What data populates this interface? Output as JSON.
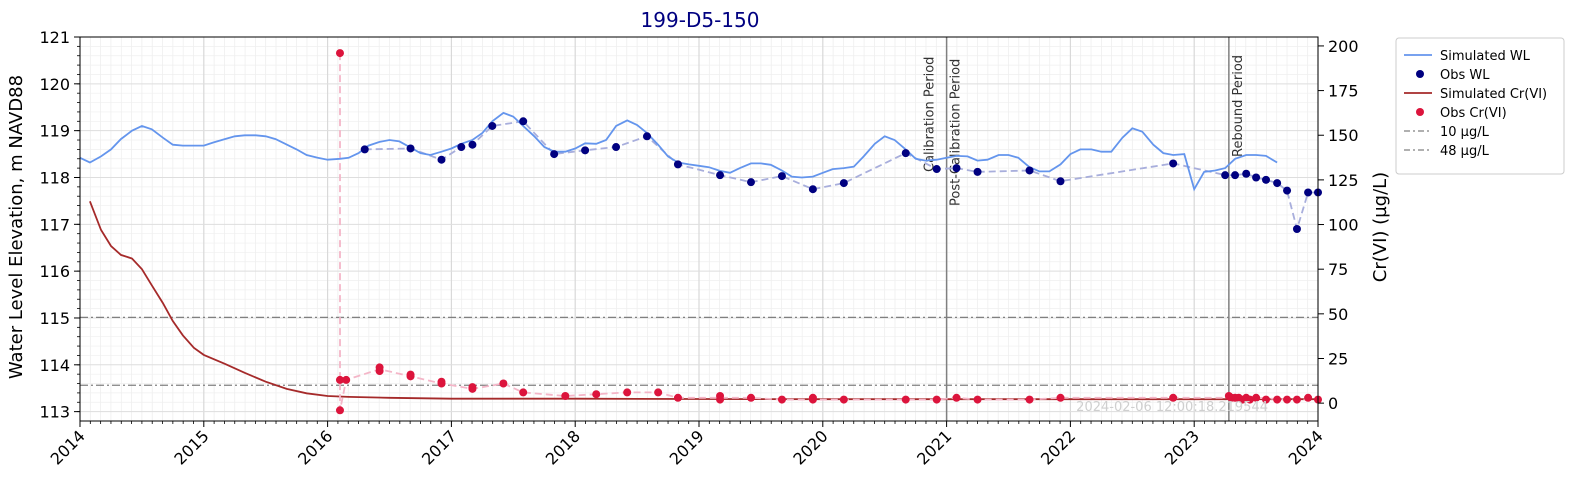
{
  "chart_data": {
    "type": "line",
    "title": "199-D5-150",
    "ylabel_left": "Water Level Elevation, m NAVD88",
    "ylabel_right": "Cr(VI) (µg/L)",
    "xlim": [
      2014.0,
      2024.0
    ],
    "ylim_left": [
      112.8,
      121.0
    ],
    "ylim_right": [
      -10,
      205
    ],
    "x_ticks": [
      "2014",
      "2015",
      "2016",
      "2017",
      "2018",
      "2019",
      "2020",
      "2021",
      "2022",
      "2023",
      "2024"
    ],
    "y_left_ticks": [
      "113",
      "114",
      "115",
      "116",
      "117",
      "118",
      "119",
      "120",
      "121"
    ],
    "y_right_ticks": [
      "0",
      "25",
      "50",
      "75",
      "100",
      "125",
      "150",
      "175",
      "200"
    ],
    "grid": true,
    "legend_position": "outside right",
    "vertical_markers": [
      {
        "x": 2021.0,
        "labels": [
          "Calibration Period",
          "Post-Calibration Period"
        ]
      },
      {
        "x": 2023.28,
        "labels": [
          "Rebound Period"
        ]
      }
    ],
    "horizontal_lines": [
      {
        "name": "10 µg/L",
        "axis": "right",
        "value": 10,
        "color": "#808080"
      },
      {
        "name": "48 µg/L",
        "axis": "right",
        "value": 48,
        "color": "#808080"
      }
    ],
    "timestamp": "2024-02-06 12:00:18.219544",
    "series": [
      {
        "name": "Simulated WL",
        "kind": "line",
        "axis": "left",
        "color": "#6495ED",
        "x": [
          2014.0,
          2014.08,
          2014.17,
          2014.25,
          2014.33,
          2014.42,
          2014.5,
          2014.58,
          2014.67,
          2014.75,
          2014.83,
          2015.0,
          2015.08,
          2015.17,
          2015.25,
          2015.33,
          2015.42,
          2015.5,
          2015.58,
          2015.75,
          2015.83,
          2015.92,
          2016.0,
          2016.1,
          2016.17,
          2016.25,
          2016.33,
          2016.42,
          2016.5,
          2016.58,
          2016.67,
          2016.75,
          2016.83,
          2016.92,
          2017.0,
          2017.08,
          2017.17,
          2017.25,
          2017.33,
          2017.42,
          2017.5,
          2017.58,
          2017.67,
          2017.75,
          2017.83,
          2017.92,
          2018.0,
          2018.08,
          2018.17,
          2018.25,
          2018.33,
          2018.42,
          2018.5,
          2018.58,
          2018.67,
          2018.75,
          2018.83,
          2018.92,
          2019.0,
          2019.08,
          2019.17,
          2019.25,
          2019.33,
          2019.42,
          2019.5,
          2019.58,
          2019.67,
          2019.75,
          2019.83,
          2019.92,
          2020.0,
          2020.08,
          2020.17,
          2020.25,
          2020.33,
          2020.42,
          2020.5,
          2020.58,
          2020.67,
          2020.75,
          2020.83,
          2020.92,
          2021.0,
          2021.08,
          2021.17,
          2021.25,
          2021.33,
          2021.42,
          2021.5,
          2021.58,
          2021.67,
          2021.75,
          2021.83,
          2021.92,
          2022.0,
          2022.08,
          2022.17,
          2022.25,
          2022.33,
          2022.42,
          2022.5,
          2022.58,
          2022.67,
          2022.75,
          2022.83,
          2022.92,
          2023.0,
          2023.08,
          2023.17,
          2023.25,
          2023.33,
          2023.42,
          2023.5,
          2023.58,
          2023.67
        ],
        "y": [
          118.42,
          118.32,
          118.45,
          118.6,
          118.82,
          119.0,
          119.1,
          119.03,
          118.85,
          118.7,
          118.68,
          118.68,
          118.75,
          118.82,
          118.88,
          118.9,
          118.9,
          118.88,
          118.82,
          118.6,
          118.48,
          118.42,
          118.38,
          118.4,
          118.42,
          118.52,
          118.68,
          118.76,
          118.8,
          118.77,
          118.64,
          118.52,
          118.48,
          118.55,
          118.62,
          118.72,
          118.8,
          118.95,
          119.2,
          119.38,
          119.3,
          119.1,
          118.88,
          118.65,
          118.55,
          118.55,
          118.62,
          118.73,
          118.72,
          118.8,
          119.1,
          119.22,
          119.12,
          118.95,
          118.7,
          118.45,
          118.32,
          118.28,
          118.25,
          118.22,
          118.14,
          118.1,
          118.2,
          118.3,
          118.3,
          118.27,
          118.15,
          118.02,
          118.0,
          118.02,
          118.1,
          118.18,
          118.2,
          118.23,
          118.45,
          118.72,
          118.88,
          118.8,
          118.6,
          118.4,
          118.36,
          118.38,
          118.42,
          118.46,
          118.45,
          118.36,
          118.38,
          118.48,
          118.48,
          118.42,
          118.22,
          118.13,
          118.13,
          118.28,
          118.5,
          118.6,
          118.6,
          118.55,
          118.55,
          118.85,
          119.05,
          118.98,
          118.7,
          118.52,
          118.48,
          118.5,
          117.75,
          118.12,
          118.15,
          118.2,
          118.4,
          118.48,
          118.48,
          118.46,
          118.32
        ]
      },
      {
        "name": "Obs WL",
        "kind": "scatter",
        "axis": "left",
        "color": "#000080",
        "x": [
          2016.3,
          2016.67,
          2016.92,
          2017.08,
          2017.17,
          2017.33,
          2017.58,
          2017.83,
          2018.08,
          2018.33,
          2018.58,
          2018.83,
          2019.17,
          2019.42,
          2019.67,
          2019.92,
          2020.17,
          2020.67,
          2020.92,
          2021.08,
          2021.25,
          2021.67,
          2021.92,
          2022.83,
          2023.25,
          2023.33,
          2023.42,
          2023.5,
          2023.58,
          2023.67,
          2023.75,
          2023.83,
          2023.92,
          2024.0
        ],
        "y": [
          118.6,
          118.62,
          118.38,
          118.65,
          118.7,
          119.1,
          119.2,
          118.5,
          118.58,
          118.65,
          118.88,
          118.28,
          118.05,
          117.9,
          118.03,
          117.75,
          117.88,
          118.52,
          118.18,
          118.2,
          118.12,
          118.15,
          117.92,
          118.3,
          118.05,
          118.05,
          118.08,
          118.0,
          117.95,
          117.88,
          117.72,
          116.9,
          117.68,
          117.68
        ]
      },
      {
        "name": "Obs WL (interpolated)",
        "kind": "dashed",
        "axis": "left",
        "color": "#a8aedc",
        "x": [
          2016.3,
          2016.67,
          2016.92,
          2017.08,
          2017.17,
          2017.33,
          2017.58,
          2017.83,
          2018.08,
          2018.33,
          2018.58,
          2018.83,
          2019.17,
          2019.42,
          2019.67,
          2019.92,
          2020.17,
          2020.67,
          2020.92,
          2021.08,
          2021.25,
          2021.67,
          2021.92,
          2022.83,
          2023.25,
          2023.33,
          2023.42,
          2023.5,
          2023.58,
          2023.67,
          2023.75,
          2023.83,
          2023.92,
          2024.0
        ],
        "y": [
          118.6,
          118.62,
          118.38,
          118.65,
          118.7,
          119.1,
          119.2,
          118.5,
          118.58,
          118.65,
          118.88,
          118.28,
          118.05,
          117.9,
          118.03,
          117.75,
          117.88,
          118.52,
          118.18,
          118.2,
          118.12,
          118.15,
          117.92,
          118.3,
          118.05,
          118.05,
          118.08,
          118.0,
          117.95,
          117.88,
          117.72,
          116.9,
          117.68,
          117.68
        ]
      },
      {
        "name": "Simulated Cr(VI)",
        "kind": "line",
        "axis": "right",
        "color": "#A52A2A",
        "x": [
          2014.08,
          2014.17,
          2014.25,
          2014.33,
          2014.42,
          2014.5,
          2014.58,
          2014.67,
          2014.75,
          2014.83,
          2014.92,
          2015.0,
          2015.17,
          2015.33,
          2015.5,
          2015.67,
          2015.83,
          2016.0,
          2016.17,
          2016.5,
          2017.0,
          2018.0,
          2019.0,
          2020.0,
          2021.0,
          2022.0,
          2023.0,
          2024.0
        ],
        "y": [
          113,
          97,
          88,
          83,
          81,
          75,
          66,
          56,
          46,
          38,
          31,
          27,
          22,
          17,
          12,
          8,
          5.5,
          4,
          3.5,
          3,
          2.5,
          2.5,
          2.3,
          2.2,
          2.2,
          2.2,
          2.2,
          2.2
        ]
      },
      {
        "name": "Obs Cr(VI)",
        "kind": "scatter",
        "axis": "right",
        "color": "#DC143C",
        "x": [
          2016.1,
          2016.1,
          2016.1,
          2016.15,
          2016.42,
          2016.42,
          2016.67,
          2016.67,
          2016.92,
          2016.92,
          2017.17,
          2017.17,
          2017.42,
          2017.58,
          2017.92,
          2018.17,
          2018.42,
          2018.67,
          2018.83,
          2019.17,
          2019.17,
          2019.42,
          2019.67,
          2019.92,
          2019.92,
          2020.17,
          2020.67,
          2020.92,
          2021.08,
          2021.25,
          2021.67,
          2021.92,
          2022.83,
          2023.28,
          2023.3,
          2023.33,
          2023.36,
          2023.39,
          2023.42,
          2023.45,
          2023.5,
          2023.58,
          2023.67,
          2023.75,
          2023.83,
          2023.92,
          2024.0
        ],
        "y": [
          196,
          13,
          -4,
          13,
          18,
          20,
          15,
          16,
          11,
          12,
          8,
          9,
          11,
          6,
          4,
          5,
          6,
          6,
          3,
          4,
          2,
          3,
          2,
          3,
          2,
          2,
          2,
          2,
          3,
          2,
          2,
          3,
          3,
          4,
          3,
          3,
          3,
          2,
          3,
          2,
          3,
          2,
          2,
          2,
          2,
          3,
          2
        ]
      },
      {
        "name": "Obs Cr(VI) (interpolated)",
        "kind": "dashed",
        "axis": "right",
        "color": "#f4b6c8",
        "x": [
          2016.1,
          2016.1,
          2016.15,
          2016.42,
          2016.67,
          2016.92,
          2017.17,
          2017.42,
          2017.58,
          2017.92,
          2018.17,
          2018.42,
          2018.67,
          2018.83,
          2019.17,
          2019.42,
          2019.67,
          2019.92,
          2020.17,
          2020.67,
          2020.92,
          2021.08,
          2021.25,
          2021.67,
          2021.92,
          2022.83,
          2023.28,
          2023.5,
          2023.75,
          2024.0
        ],
        "y": [
          196,
          -4,
          13,
          19,
          15,
          11,
          8,
          11,
          6,
          4,
          5,
          6,
          6,
          3,
          3,
          3,
          2,
          2,
          2,
          2,
          2,
          3,
          2,
          2,
          3,
          3,
          3,
          3,
          2,
          2
        ]
      }
    ]
  },
  "legend": [
    {
      "label": "Simulated WL",
      "kind": "line",
      "color": "#6495ED"
    },
    {
      "label": "Obs WL",
      "kind": "marker",
      "color": "#000080"
    },
    {
      "label": "Simulated Cr(VI)",
      "kind": "line",
      "color": "#A52A2A"
    },
    {
      "label": "Obs Cr(VI)",
      "kind": "marker",
      "color": "#DC143C"
    },
    {
      "label": "10 µg/L",
      "kind": "dashdot",
      "color": "#808080"
    },
    {
      "label": "48 µg/L",
      "kind": "dashdot",
      "color": "#808080"
    }
  ]
}
